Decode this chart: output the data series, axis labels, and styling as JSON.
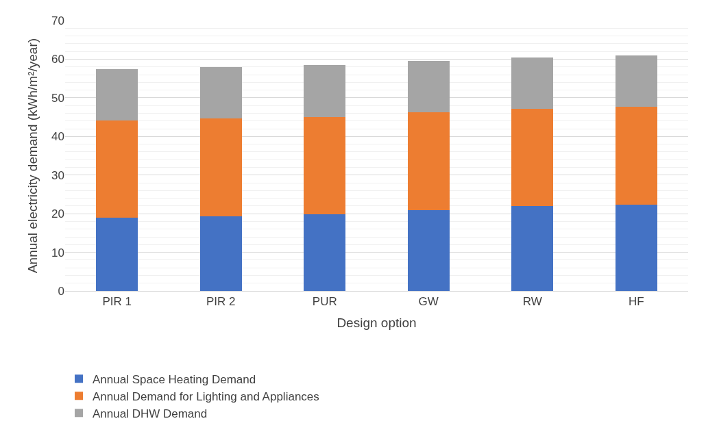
{
  "chart_data": {
    "type": "bar",
    "stacked": true,
    "xlabel": "Design option",
    "ylabel": "Annual electricity demand (kWh/m²/year)",
    "categories": [
      "PIR 1",
      "PIR 2",
      "PUR",
      "GW",
      "RW",
      "HF"
    ],
    "series": [
      {
        "name": "Annual Space Heating Demand",
        "color": "#4472c4",
        "values": [
          19.0,
          19.4,
          19.8,
          21.0,
          21.9,
          22.4
        ]
      },
      {
        "name": "Annual Demand for Lighting and Appliances",
        "color": "#ed7d31",
        "values": [
          25.1,
          25.2,
          25.3,
          25.2,
          25.3,
          25.2
        ]
      },
      {
        "name": "Annual DHW Demand",
        "color": "#a5a5a5",
        "values": [
          13.4,
          13.4,
          13.3,
          13.4,
          13.2,
          13.4
        ]
      }
    ],
    "ylim": [
      0,
      70
    ],
    "yticks": [
      0,
      {
        "value": 2,
        "label": null
      },
      {
        "value": 4,
        "label": null
      },
      {
        "value": 6,
        "label": null
      },
      {
        "value": 8,
        "label": null
      },
      10,
      {
        "value": 12,
        "label": null
      },
      {
        "value": 14,
        "label": null
      },
      {
        "value": 16,
        "label": null
      },
      {
        "value": 18,
        "label": null
      },
      20,
      {
        "value": 22,
        "label": null
      },
      {
        "value": 24,
        "label": null
      },
      {
        "value": 26,
        "label": null
      },
      {
        "value": 28,
        "label": null
      },
      30,
      {
        "value": 32,
        "label": null
      },
      {
        "value": 34,
        "label": null
      },
      {
        "value": 36,
        "label": null
      },
      {
        "value": 38,
        "label": null
      },
      40,
      {
        "value": 42,
        "label": null
      },
      {
        "value": 44,
        "label": null
      },
      {
        "value": 46,
        "label": null
      },
      {
        "value": 48,
        "label": null
      },
      50,
      {
        "value": 52,
        "label": null
      },
      {
        "value": 54,
        "label": null
      },
      {
        "value": 56,
        "label": null
      },
      {
        "value": 58,
        "label": null
      },
      60,
      {
        "value": 62,
        "label": null
      },
      {
        "value": 64,
        "label": null
      },
      {
        "value": 66,
        "label": null
      },
      {
        "value": 68,
        "label": null
      },
      70
    ],
    "grid": "y",
    "legend": "bottom"
  }
}
